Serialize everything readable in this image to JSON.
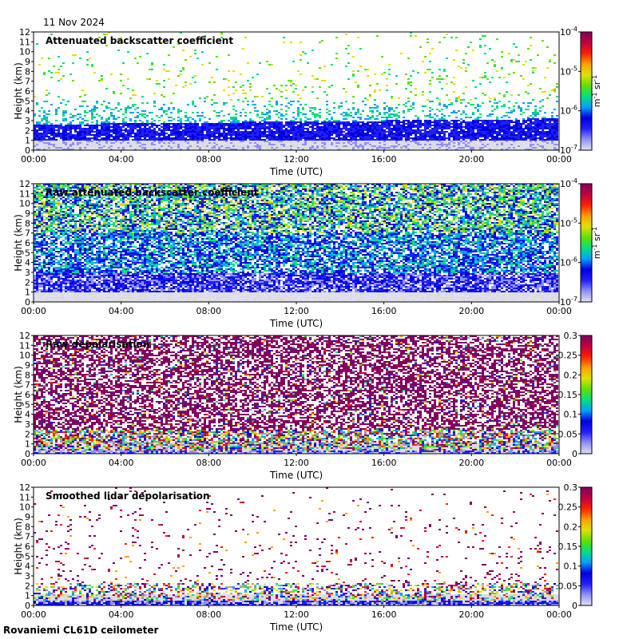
{
  "header": {
    "date": "11 Nov 2024"
  },
  "footer": {
    "station": "Rovaniemi CL61D ceilometer"
  },
  "colors": {
    "background_no_signal": "#dcdcdc",
    "colormap": [
      "#e0e0f4",
      "#9090ff",
      "#2020ff",
      "#0000e0",
      "#00a0ff",
      "#00e080",
      "#60e000",
      "#e0e000",
      "#ffa000",
      "#ff2000",
      "#c00040",
      "#800060"
    ]
  },
  "chart_data": [
    {
      "type": "heatmap",
      "title": "Attenuated backscatter coefficient",
      "xlabel": "Time (UTC)",
      "ylabel": "Height (km)",
      "xticks": [
        "00:00",
        "04:00",
        "08:00",
        "12:00",
        "16:00",
        "20:00",
        "00:00"
      ],
      "yticks": [
        "0",
        "1",
        "2",
        "3",
        "4",
        "5",
        "6",
        "7",
        "8",
        "9",
        "10",
        "11",
        "12"
      ],
      "ylim": [
        0,
        12
      ],
      "xlim_hours": [
        0,
        24
      ],
      "colorbar": {
        "scale": "log",
        "ticks": [
          "10-7",
          "10-6",
          "10-5",
          "10-4"
        ],
        "ticks_display": [
          {
            "base": "10",
            "exp": "-7"
          },
          {
            "base": "10",
            "exp": "-6"
          },
          {
            "base": "10",
            "exp": "-5"
          },
          {
            "base": "10",
            "exp": "-4"
          }
        ],
        "unit": "m-1 sr-1",
        "min": 1e-07,
        "max": 0.0001
      },
      "pattern": "smoothed-backscatter"
    },
    {
      "type": "heatmap",
      "title": "Raw attenuated backscatter coefficient",
      "xlabel": "Time (UTC)",
      "ylabel": "Height (km)",
      "xticks": [
        "00:00",
        "04:00",
        "08:00",
        "12:00",
        "16:00",
        "20:00",
        "00:00"
      ],
      "yticks": [
        "0",
        "1",
        "2",
        "3",
        "4",
        "5",
        "6",
        "7",
        "8",
        "9",
        "10",
        "11",
        "12"
      ],
      "ylim": [
        0,
        12
      ],
      "xlim_hours": [
        0,
        24
      ],
      "colorbar": {
        "scale": "log",
        "ticks": [
          "10-7",
          "10-6",
          "10-5",
          "10-4"
        ],
        "ticks_display": [
          {
            "base": "10",
            "exp": "-7"
          },
          {
            "base": "10",
            "exp": "-6"
          },
          {
            "base": "10",
            "exp": "-5"
          },
          {
            "base": "10",
            "exp": "-4"
          }
        ],
        "unit": "m-1 sr-1",
        "min": 1e-07,
        "max": 0.0001
      },
      "pattern": "raw-backscatter"
    },
    {
      "type": "heatmap",
      "title": "Raw depolarisation",
      "xlabel": "Time (UTC)",
      "ylabel": "Height (km)",
      "xticks": [
        "00:00",
        "04:00",
        "08:00",
        "12:00",
        "16:00",
        "20:00",
        "00:00"
      ],
      "yticks": [
        "0",
        "1",
        "2",
        "3",
        "4",
        "5",
        "6",
        "7",
        "8",
        "9",
        "10",
        "11",
        "12"
      ],
      "ylim": [
        0,
        12
      ],
      "xlim_hours": [
        0,
        24
      ],
      "colorbar": {
        "scale": "linear",
        "ticks": [
          "0",
          "0.05",
          "0.1",
          "0.15",
          "0.2",
          "0.25",
          "0.3"
        ],
        "min": 0,
        "max": 0.3
      },
      "pattern": "raw-depol"
    },
    {
      "type": "heatmap",
      "title": "Smoothed lidar depolarisation",
      "xlabel": "Time (UTC)",
      "ylabel": "Height (km)",
      "xticks": [
        "00:00",
        "04:00",
        "08:00",
        "12:00",
        "16:00",
        "20:00",
        "00:00"
      ],
      "yticks": [
        "0",
        "1",
        "2",
        "3",
        "4",
        "5",
        "6",
        "7",
        "8",
        "9",
        "10",
        "11",
        "12"
      ],
      "ylim": [
        0,
        12
      ],
      "xlim_hours": [
        0,
        24
      ],
      "colorbar": {
        "scale": "linear",
        "ticks": [
          "0",
          "0.05",
          "0.1",
          "0.15",
          "0.2",
          "0.25",
          "0.3"
        ],
        "min": 0,
        "max": 0.3
      },
      "pattern": "smoothed-depol"
    }
  ]
}
